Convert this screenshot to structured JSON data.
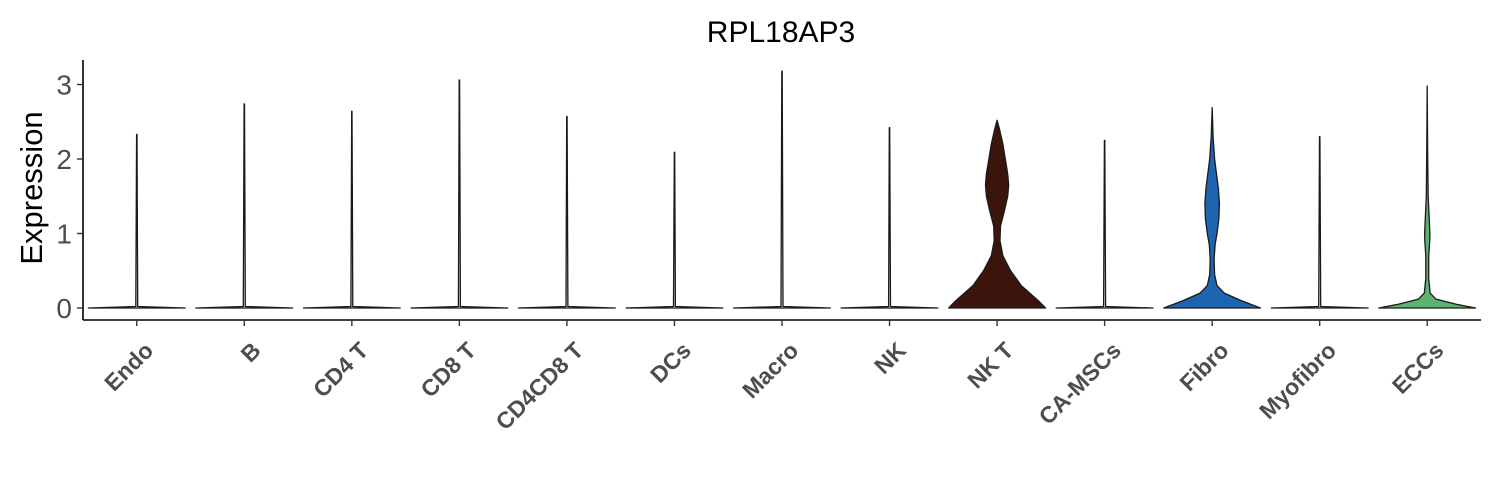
{
  "chart_data": {
    "type": "violin",
    "title": "RPL18AP3",
    "xlabel": "",
    "ylabel": "Expression",
    "ylim": [
      -0.15,
      3.3
    ],
    "yticks": [
      "0",
      "1",
      "2",
      "3"
    ],
    "grid": false,
    "legend": "none",
    "categories": [
      "Endo",
      "B",
      "CD4 T",
      "CD8 T",
      "CD4CD8 T",
      "DCs",
      "Macro",
      "NK",
      "NK T",
      "CA-MSCs",
      "Fibro",
      "Myofibro",
      "ECCs"
    ],
    "series": [
      {
        "category": "Endo",
        "max": 2.33,
        "color": "#e6e6e6",
        "profile": [
          [
            0,
            1
          ],
          [
            0.02,
            0.02
          ],
          [
            2.33,
            0.004
          ]
        ]
      },
      {
        "category": "B",
        "max": 2.74,
        "color": "#e6e6e6",
        "profile": [
          [
            0,
            1
          ],
          [
            0.02,
            0.02
          ],
          [
            2.74,
            0.004
          ]
        ]
      },
      {
        "category": "CD4 T",
        "max": 2.64,
        "color": "#e6e6e6",
        "profile": [
          [
            0,
            1
          ],
          [
            0.02,
            0.02
          ],
          [
            2.64,
            0.004
          ]
        ]
      },
      {
        "category": "CD8 T",
        "max": 3.06,
        "color": "#e6e6e6",
        "profile": [
          [
            0,
            1
          ],
          [
            0.02,
            0.02
          ],
          [
            3.06,
            0.004
          ]
        ]
      },
      {
        "category": "CD4CD8 T",
        "max": 2.57,
        "color": "#e6e6e6",
        "profile": [
          [
            0,
            1
          ],
          [
            0.02,
            0.02
          ],
          [
            2.57,
            0.004
          ]
        ]
      },
      {
        "category": "DCs",
        "max": 2.09,
        "color": "#e6e6e6",
        "profile": [
          [
            0,
            1
          ],
          [
            0.02,
            0.02
          ],
          [
            2.09,
            0.004
          ]
        ]
      },
      {
        "category": "Macro",
        "max": 3.18,
        "color": "#e6e6e6",
        "profile": [
          [
            0,
            1
          ],
          [
            0.02,
            0.02
          ],
          [
            3.18,
            0.004
          ]
        ]
      },
      {
        "category": "NK",
        "max": 2.42,
        "color": "#e6e6e6",
        "profile": [
          [
            0,
            1
          ],
          [
            0.02,
            0.02
          ],
          [
            2.42,
            0.004
          ]
        ]
      },
      {
        "category": "NK T",
        "max": 2.52,
        "color": "#3b150c",
        "profile": [
          [
            0,
            1.0
          ],
          [
            0.1,
            0.85
          ],
          [
            0.3,
            0.5
          ],
          [
            0.5,
            0.28
          ],
          [
            0.7,
            0.12
          ],
          [
            0.9,
            0.06
          ],
          [
            1.1,
            0.07
          ],
          [
            1.3,
            0.15
          ],
          [
            1.5,
            0.22
          ],
          [
            1.65,
            0.24
          ],
          [
            1.8,
            0.22
          ],
          [
            2.0,
            0.17
          ],
          [
            2.2,
            0.12
          ],
          [
            2.4,
            0.05
          ],
          [
            2.52,
            0.0
          ]
        ]
      },
      {
        "category": "CA-MSCs",
        "max": 2.25,
        "color": "#e6e6e6",
        "profile": [
          [
            0,
            1
          ],
          [
            0.02,
            0.02
          ],
          [
            2.25,
            0.004
          ]
        ]
      },
      {
        "category": "Fibro",
        "max": 2.69,
        "color": "#1f64b0",
        "profile": [
          [
            0,
            1.0
          ],
          [
            0.1,
            0.6
          ],
          [
            0.2,
            0.25
          ],
          [
            0.3,
            0.1
          ],
          [
            0.45,
            0.05
          ],
          [
            0.65,
            0.04
          ],
          [
            0.85,
            0.06
          ],
          [
            1.0,
            0.1
          ],
          [
            1.2,
            0.14
          ],
          [
            1.4,
            0.15
          ],
          [
            1.6,
            0.13
          ],
          [
            1.8,
            0.09
          ],
          [
            2.0,
            0.05
          ],
          [
            2.3,
            0.02
          ],
          [
            2.69,
            0.0
          ]
        ]
      },
      {
        "category": "Myofibro",
        "max": 2.3,
        "color": "#e6e6e6",
        "profile": [
          [
            0,
            1
          ],
          [
            0.02,
            0.02
          ],
          [
            2.3,
            0.004
          ]
        ]
      },
      {
        "category": "ECCs",
        "max": 2.98,
        "color": "#5cb26e",
        "profile": [
          [
            0,
            1.0
          ],
          [
            0.05,
            0.6
          ],
          [
            0.12,
            0.18
          ],
          [
            0.2,
            0.06
          ],
          [
            0.4,
            0.03
          ],
          [
            0.7,
            0.03
          ],
          [
            0.9,
            0.05
          ],
          [
            1.0,
            0.055
          ],
          [
            1.2,
            0.04
          ],
          [
            1.5,
            0.02
          ],
          [
            2.0,
            0.01
          ],
          [
            2.98,
            0.0
          ]
        ]
      }
    ]
  }
}
